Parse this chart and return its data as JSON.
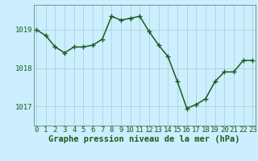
{
  "x": [
    0,
    1,
    2,
    3,
    4,
    5,
    6,
    7,
    8,
    9,
    10,
    11,
    12,
    13,
    14,
    15,
    16,
    17,
    18,
    19,
    20,
    21,
    22,
    23
  ],
  "y": [
    1019.0,
    1018.85,
    1018.55,
    1018.4,
    1018.55,
    1018.55,
    1018.6,
    1018.75,
    1019.35,
    1019.25,
    1019.3,
    1019.35,
    1018.95,
    1018.6,
    1018.3,
    1017.65,
    1016.95,
    1017.05,
    1017.2,
    1017.65,
    1017.9,
    1017.9,
    1018.2,
    1018.2
  ],
  "line_color": "#1a5c1a",
  "marker": "+",
  "marker_size": 4,
  "marker_edge_width": 1.0,
  "background_color": "#cceeff",
  "grid_color": "#aad4d4",
  "spine_color": "#669999",
  "xlabel": "Graphe pression niveau de la mer (hPa)",
  "xlabel_fontsize": 7.5,
  "ylabel_ticks": [
    1017,
    1018,
    1019
  ],
  "xtick_labels": [
    "0",
    "1",
    "2",
    "3",
    "4",
    "5",
    "6",
    "7",
    "8",
    "9",
    "10",
    "11",
    "12",
    "13",
    "14",
    "15",
    "16",
    "17",
    "18",
    "19",
    "20",
    "21",
    "22",
    "23"
  ],
  "ylim": [
    1016.5,
    1019.65
  ],
  "xlim": [
    -0.3,
    23.3
  ],
  "tick_fontsize": 6.5,
  "line_width": 1.1
}
